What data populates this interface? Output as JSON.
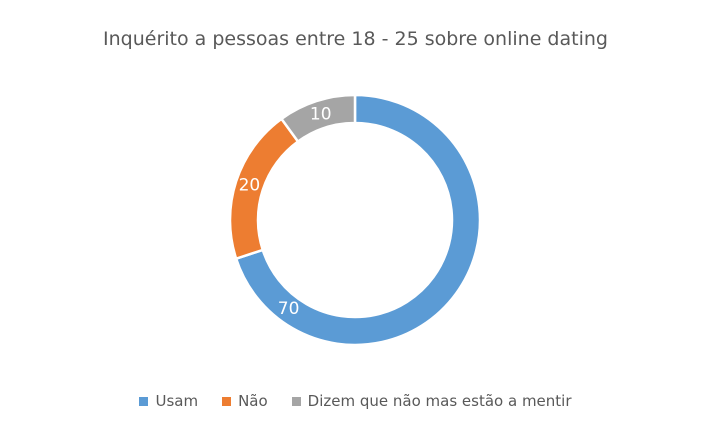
{
  "chart_data": {
    "type": "pie",
    "variant": "donut",
    "title": "Inquérito a pessoas entre 18 - 25 sobre online dating",
    "categories": [
      "Usam",
      "Não",
      "Dizem que não mas estão a mentir"
    ],
    "values": [
      70,
      20,
      10
    ],
    "data_labels": [
      "70",
      "20",
      "10"
    ],
    "colors": [
      "#5B9BD5",
      "#ED7D31",
      "#A5A5A5"
    ],
    "legend_position": "bottom",
    "start_angle": "top, clockwise"
  }
}
